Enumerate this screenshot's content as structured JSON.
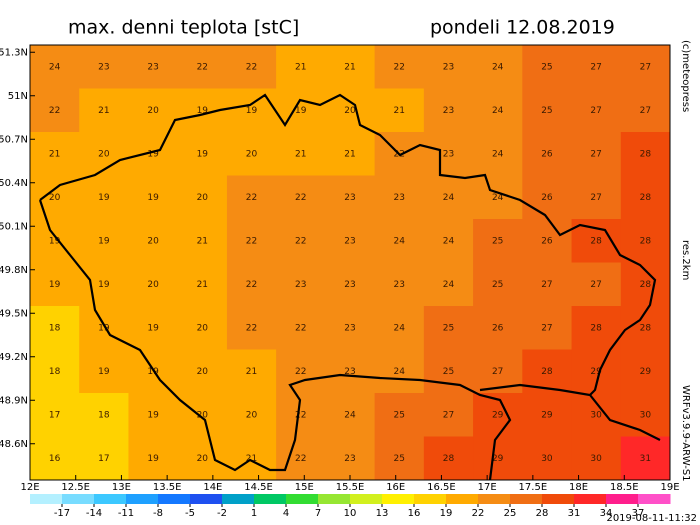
{
  "map": {
    "title": "max. denni teplota [stC]",
    "date": "pondeli 12.08.2019",
    "copyright": "(c)meteopress",
    "resolution": "res.2km",
    "model": "WRFv3.9.9-ARW-S1",
    "run_time": "2019-08-11-11:32",
    "xlim": [
      12,
      19
    ],
    "ylim": [
      48.35,
      51.35
    ],
    "xticks": [
      {
        "value": 12,
        "label": "12E"
      },
      {
        "value": 12.5,
        "label": "12.5E"
      },
      {
        "value": 13,
        "label": "13E"
      },
      {
        "value": 13.5,
        "label": "13.5E"
      },
      {
        "value": 14,
        "label": "14E"
      },
      {
        "value": 14.5,
        "label": "14.5E"
      },
      {
        "value": 15,
        "label": "15E"
      },
      {
        "value": 15.5,
        "label": "15.5E"
      },
      {
        "value": 16,
        "label": "16E"
      },
      {
        "value": 16.5,
        "label": "16.5E"
      },
      {
        "value": 17,
        "label": "17E"
      },
      {
        "value": 17.5,
        "label": "17.5E"
      },
      {
        "value": 18,
        "label": "18E"
      },
      {
        "value": 18.5,
        "label": "18.5E"
      },
      {
        "value": 19,
        "label": "19E"
      }
    ],
    "yticks": [
      {
        "value": 51.3,
        "label": "51.3N"
      },
      {
        "value": 51,
        "label": "51N"
      },
      {
        "value": 50.7,
        "label": "50.7N"
      },
      {
        "value": 50.4,
        "label": "50.4N"
      },
      {
        "value": 50.1,
        "label": "50.1N"
      },
      {
        "value": 49.8,
        "label": "49.8N"
      },
      {
        "value": 49.5,
        "label": "49.5N"
      },
      {
        "value": 49.2,
        "label": "49.2N"
      },
      {
        "value": 48.9,
        "label": "48.9N"
      },
      {
        "value": 48.6,
        "label": "48.6N"
      }
    ],
    "field": [
      [
        24,
        23,
        23,
        22,
        22,
        21,
        21,
        22,
        23,
        24,
        25,
        27,
        27
      ],
      [
        22,
        21,
        20,
        19,
        19,
        19,
        20,
        21,
        23,
        24,
        25,
        27,
        27
      ],
      [
        21,
        20,
        19,
        19,
        20,
        21,
        21,
        22,
        23,
        24,
        26,
        27,
        28
      ],
      [
        20,
        19,
        19,
        20,
        22,
        22,
        23,
        23,
        24,
        24,
        26,
        27,
        28
      ],
      [
        19,
        19,
        20,
        21,
        22,
        22,
        23,
        24,
        24,
        25,
        26,
        28,
        28
      ],
      [
        19,
        19,
        20,
        21,
        22,
        23,
        23,
        23,
        24,
        25,
        27,
        27,
        28
      ],
      [
        18,
        19,
        19,
        20,
        22,
        22,
        23,
        24,
        25,
        26,
        27,
        28,
        28
      ],
      [
        18,
        19,
        19,
        20,
        21,
        22,
        23,
        24,
        25,
        27,
        28,
        29,
        29
      ],
      [
        17,
        18,
        19,
        20,
        20,
        22,
        24,
        25,
        27,
        29,
        29,
        30,
        30
      ],
      [
        16,
        17,
        19,
        20,
        21,
        22,
        23,
        25,
        28,
        29,
        30,
        30,
        31
      ]
    ],
    "colorbar": {
      "lim": [
        -20,
        40
      ],
      "ticks": [
        -17,
        -14,
        -11,
        -8,
        -5,
        -2,
        1,
        4,
        7,
        10,
        13,
        16,
        19,
        22,
        25,
        28,
        31,
        34,
        37
      ],
      "colors": [
        "#b4f0ff",
        "#78dcff",
        "#3cc8ff",
        "#1ea0ff",
        "#1478ff",
        "#1e50f0",
        "#00a0c8",
        "#00c864",
        "#32dc32",
        "#96e632",
        "#d2f01e",
        "#fff000",
        "#ffd200",
        "#ffaa00",
        "#f58c14",
        "#f06e14",
        "#f04b0a",
        "#ff2828",
        "#ff1e8c",
        "#ff50c8"
      ]
    }
  }
}
